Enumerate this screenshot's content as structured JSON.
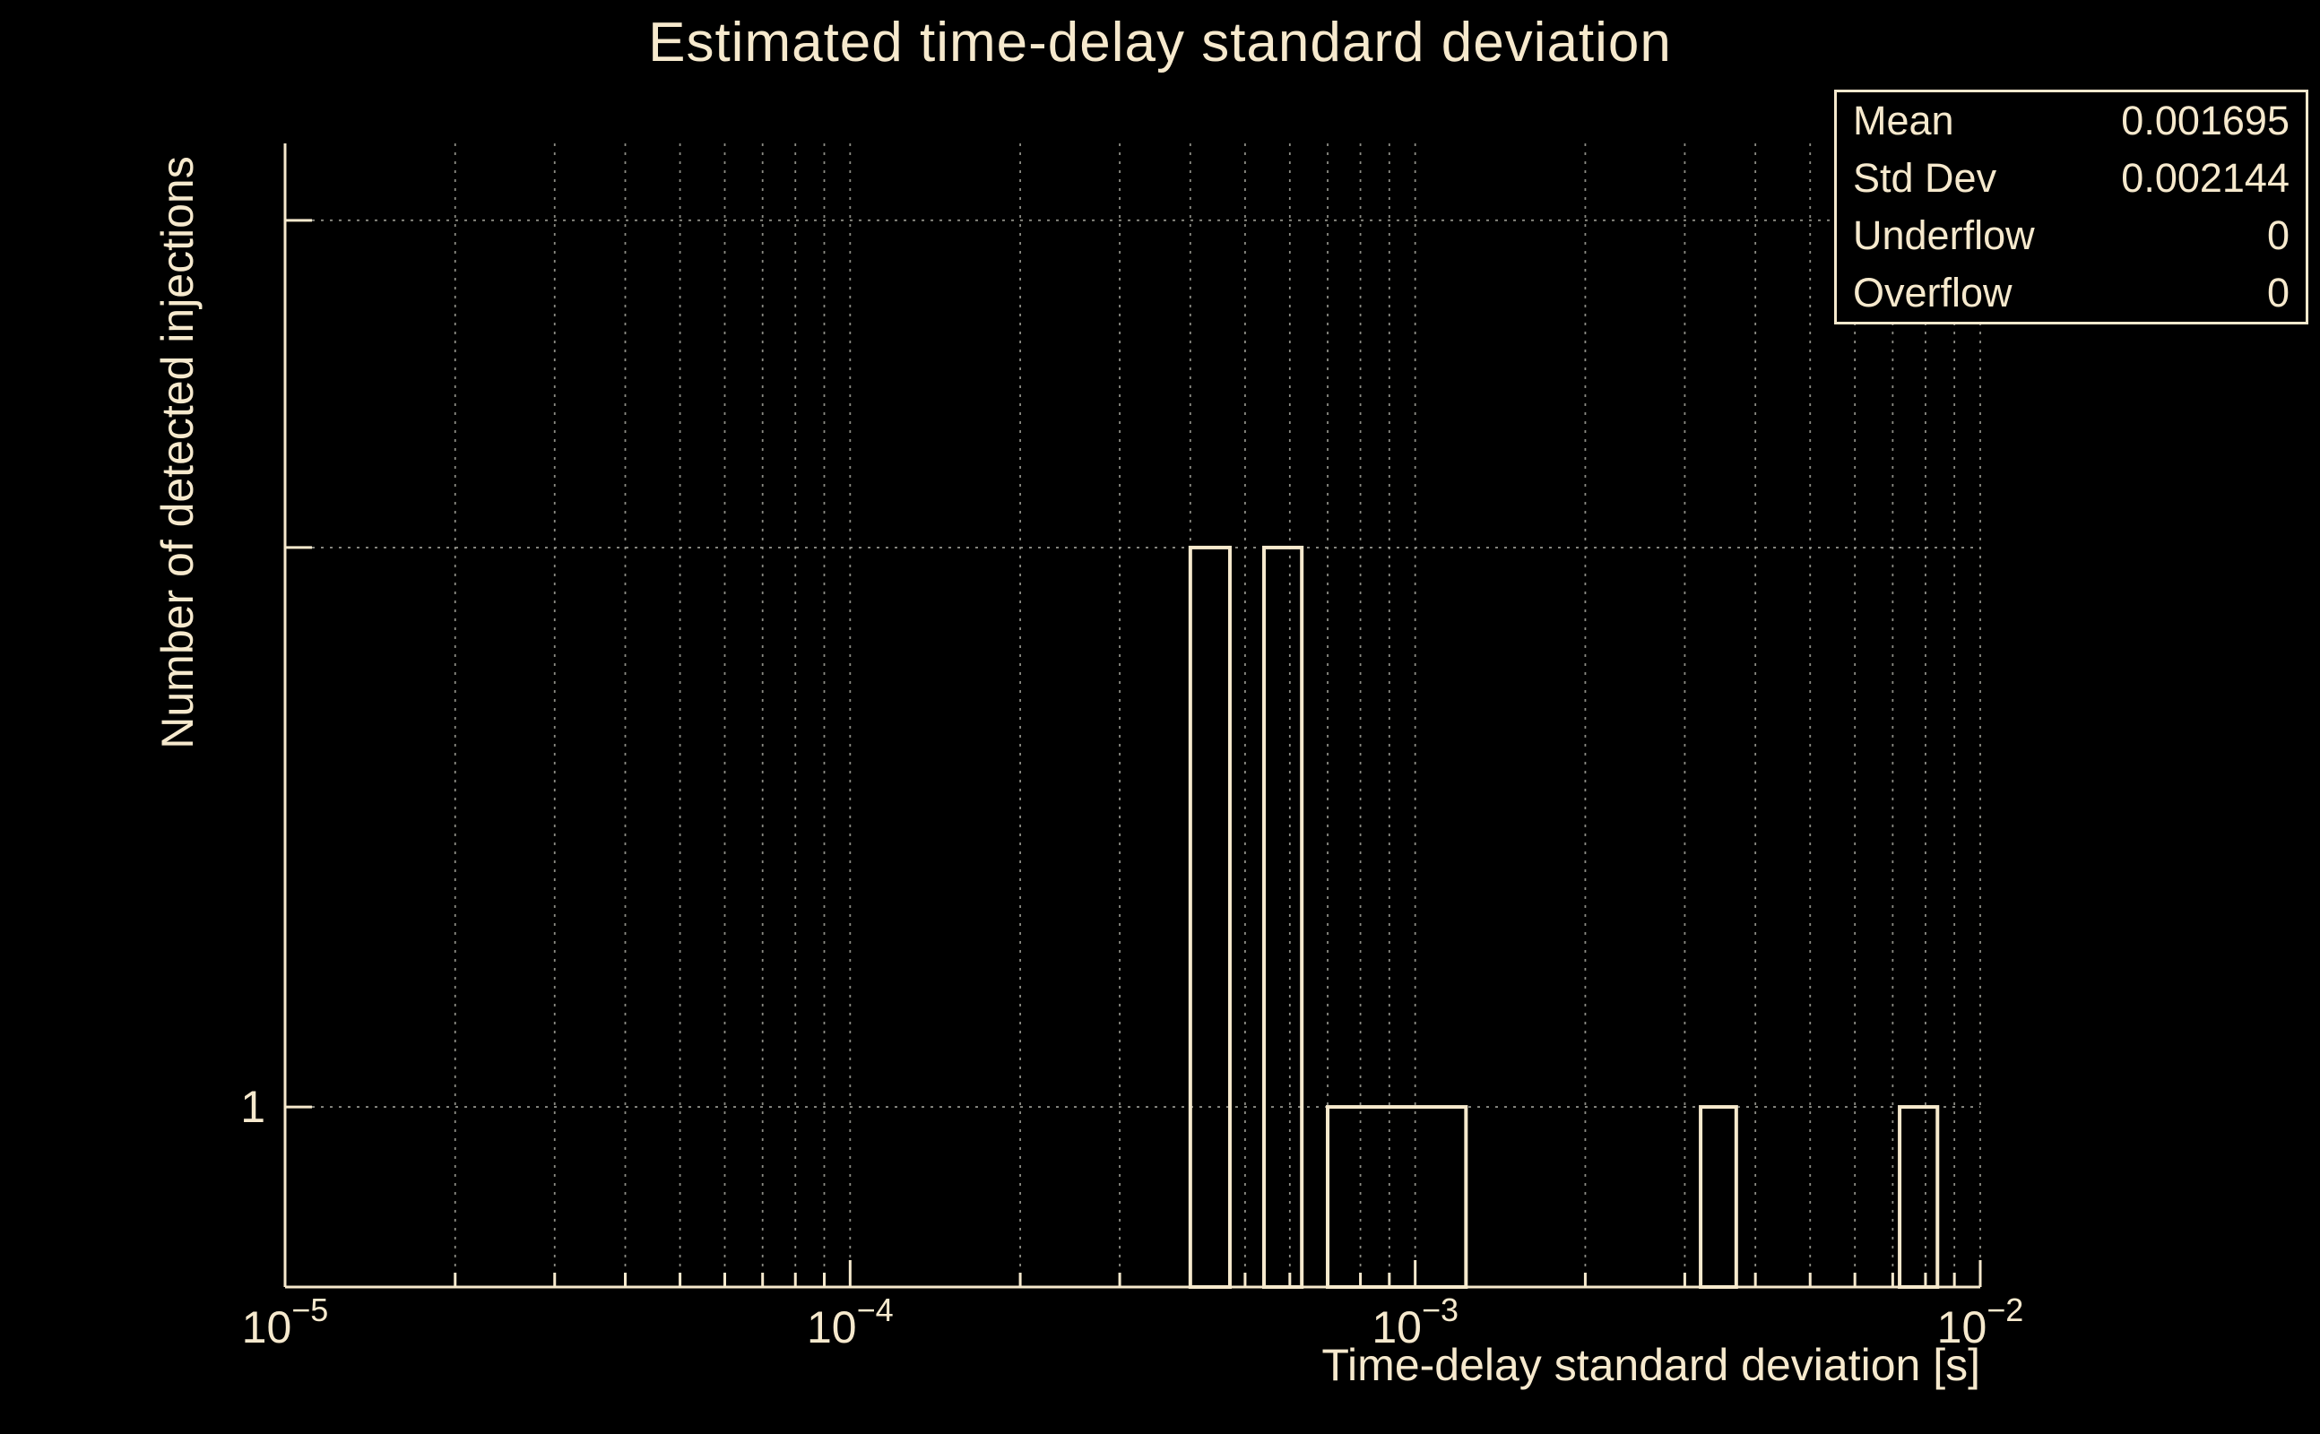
{
  "chart_data": {
    "type": "bar",
    "style": "log-log step histogram",
    "title": "Estimated time-delay standard deviation",
    "xlabel": "Time-delay standard deviation [s]",
    "ylabel": "Number of detected injections",
    "x_scale": "log",
    "y_scale": "log",
    "xlim": [
      1e-05,
      0.01
    ],
    "ylim": [
      0.8,
      3.3
    ],
    "grid": true,
    "legend": "none",
    "x_major_ticks": [
      {
        "value": 1e-05,
        "base": "10",
        "exponent": "−5"
      },
      {
        "value": 0.0001,
        "base": "10",
        "exponent": "−4"
      },
      {
        "value": 0.001,
        "base": "10",
        "exponent": "−3"
      },
      {
        "value": 0.01,
        "base": "10",
        "exponent": "−2"
      }
    ],
    "y_gridlines": [
      1,
      2,
      3
    ],
    "y_tick_labels": [
      {
        "value": 1,
        "label": "1"
      }
    ],
    "bars": [
      {
        "x_min": 0.0004,
        "x_max": 0.00047,
        "count": 2
      },
      {
        "x_min": 0.00054,
        "x_max": 0.00063,
        "count": 2
      },
      {
        "x_min": 0.0007,
        "x_max": 0.00123,
        "count": 1
      },
      {
        "x_min": 0.0032,
        "x_max": 0.0037,
        "count": 1
      },
      {
        "x_min": 0.0072,
        "x_max": 0.0084,
        "count": 1
      }
    ],
    "colors": {
      "background": "#000000",
      "foreground": "#f6e9cd",
      "grid": "#8c8c84"
    }
  },
  "stats_box": {
    "rows": [
      {
        "label": "Mean",
        "value": "0.001695"
      },
      {
        "label": "Std Dev",
        "value": "0.002144"
      },
      {
        "label": "Underflow",
        "value": "0"
      },
      {
        "label": "Overflow",
        "value": "0"
      }
    ]
  }
}
